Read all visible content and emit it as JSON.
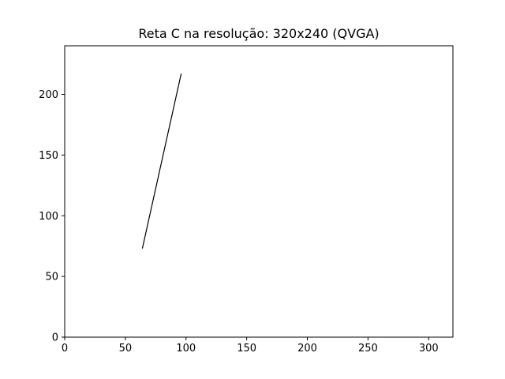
{
  "chart_data": {
    "type": "line",
    "title": "Reta C na resolução: 320x240 (QVGA)",
    "xlabel": "",
    "ylabel": "",
    "xlim": [
      0,
      320
    ],
    "ylim": [
      0,
      240
    ],
    "x_ticks": [
      0,
      50,
      100,
      150,
      200,
      250,
      300
    ],
    "y_ticks": [
      0,
      50,
      100,
      150,
      200
    ],
    "grid": false,
    "line_color": "#000000",
    "series": [
      {
        "x": [
          64,
          96
        ],
        "y": [
          73,
          217
        ]
      }
    ]
  }
}
